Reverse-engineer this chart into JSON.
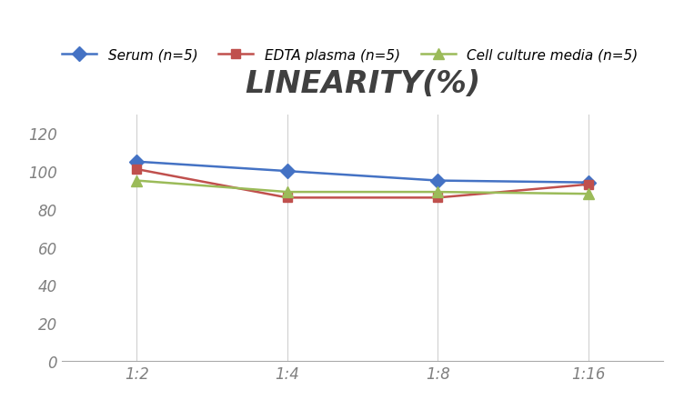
{
  "title": "LINEARITY(%)",
  "x_labels": [
    "1:2",
    "1:4",
    "1:8",
    "1:16"
  ],
  "x_positions": [
    0,
    1,
    2,
    3
  ],
  "series": [
    {
      "label": "Serum (n=5)",
      "values": [
        105,
        100,
        95,
        94
      ],
      "color": "#4472C4",
      "marker": "D",
      "markersize": 8,
      "linewidth": 1.8
    },
    {
      "label": "EDTA plasma (n=5)",
      "values": [
        101,
        86,
        86,
        93
      ],
      "color": "#C0504D",
      "marker": "s",
      "markersize": 7,
      "linewidth": 1.8
    },
    {
      "label": "Cell culture media (n=5)",
      "values": [
        95,
        89,
        89,
        88
      ],
      "color": "#9BBB59",
      "marker": "^",
      "markersize": 8,
      "linewidth": 1.8
    }
  ],
  "ylim": [
    0,
    130
  ],
  "yticks": [
    0,
    20,
    40,
    60,
    80,
    100,
    120
  ],
  "grid_color": "#D0D0D0",
  "background_color": "#FFFFFF",
  "title_fontsize": 24,
  "legend_fontsize": 11,
  "tick_fontsize": 12,
  "tick_color": "#808080"
}
